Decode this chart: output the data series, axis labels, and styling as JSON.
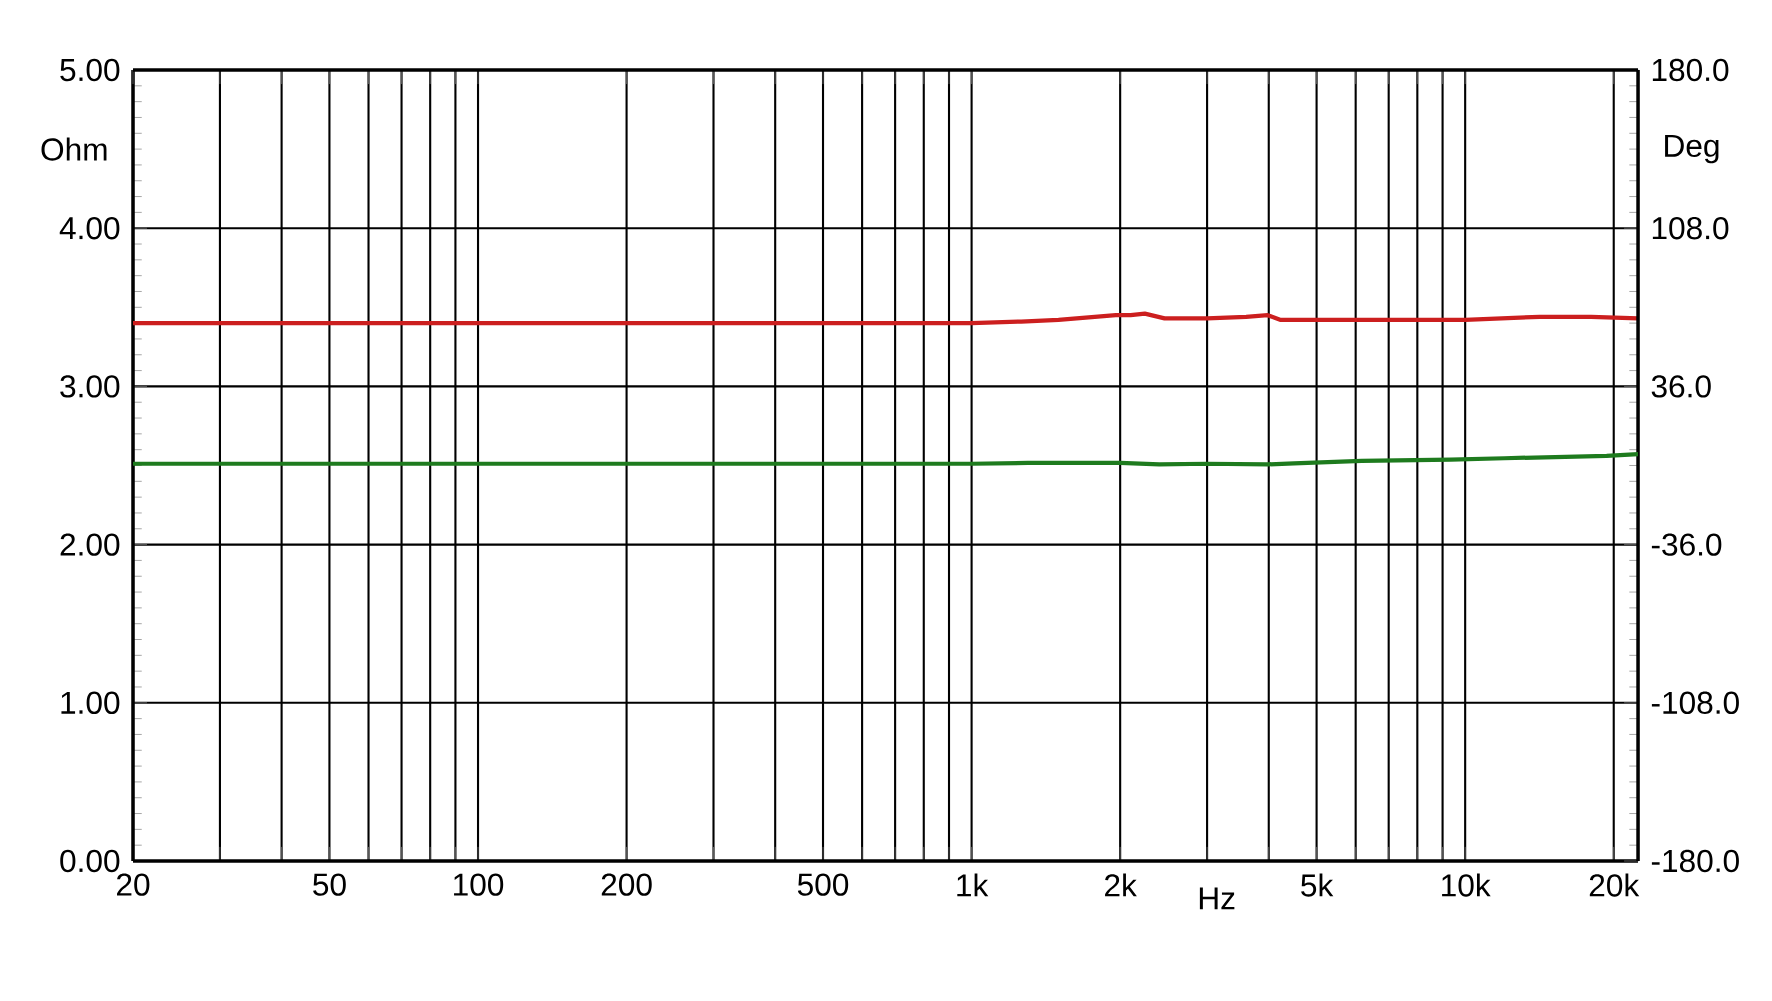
{
  "chart_data": {
    "type": "line",
    "xlabel": "Hz",
    "ylabel": "Ohm",
    "y2label": "Deg",
    "log": "x",
    "grid": true,
    "xlim": [
      20,
      22400
    ],
    "xticks": [
      20,
      {
        "value": 30,
        "label": null
      },
      {
        "value": 40,
        "label": null
      },
      50,
      {
        "value": 60,
        "label": null
      },
      {
        "value": 70,
        "label": null
      },
      {
        "value": 80,
        "label": null
      },
      {
        "value": 90,
        "label": null
      },
      100,
      200,
      {
        "value": 300,
        "label": null
      },
      {
        "value": 400,
        "label": null
      },
      500,
      {
        "value": 600,
        "label": null
      },
      {
        "value": 700,
        "label": null
      },
      {
        "value": 800,
        "label": null
      },
      {
        "value": 900,
        "label": null
      },
      {
        "value": 1000,
        "label": "1k"
      },
      {
        "value": 2000,
        "label": "2k"
      },
      {
        "value": 3000,
        "label": null
      },
      {
        "value": 4000,
        "label": null
      },
      {
        "value": 5000,
        "label": "5k"
      },
      {
        "value": 6000,
        "label": null
      },
      {
        "value": 7000,
        "label": null
      },
      {
        "value": 8000,
        "label": null
      },
      {
        "value": 9000,
        "label": null
      },
      {
        "value": 10000,
        "label": "10k"
      },
      {
        "value": 20000,
        "label": "20k"
      }
    ],
    "ylim": [
      0,
      5
    ],
    "yticks": [
      {
        "value": 0,
        "label": "0.00"
      },
      {
        "value": 1,
        "label": "1.00"
      },
      {
        "value": 2,
        "label": "2.00"
      },
      {
        "value": 3,
        "label": "3.00"
      },
      {
        "value": 4,
        "label": "4.00"
      },
      {
        "value": 5,
        "label": "5.00"
      }
    ],
    "y2lim": [
      -180,
      180
    ],
    "y2ticks": [
      {
        "value": -180,
        "label": "-180.0"
      },
      {
        "value": -108,
        "label": "-108.0"
      },
      {
        "value": -36,
        "label": "-36.0"
      },
      {
        "value": 36,
        "label": "36.0"
      },
      {
        "value": 108,
        "label": "108.0"
      },
      {
        "value": 180,
        "label": "180.0"
      }
    ],
    "series": [
      {
        "color": "#cc1f1f",
        "x": [
          20,
          1000,
          1260,
          1500,
          1960,
          2100,
          2244,
          2460,
          3000,
          3600,
          3980,
          4230,
          6000,
          8000,
          9000,
          10000,
          14150,
          18000,
          22400
        ],
        "values": [
          3.4,
          3.4,
          3.41,
          3.42,
          3.45,
          3.45,
          3.46,
          3.43,
          3.43,
          3.44,
          3.45,
          3.42,
          3.42,
          3.42,
          3.42,
          3.42,
          3.44,
          3.44,
          3.43
        ]
      },
      {
        "color": "#1e7b1e",
        "axis": "y2",
        "x": [
          20,
          1000,
          1300,
          2000,
          2400,
          3000,
          3980,
          4500,
          6170,
          9350,
          12000,
          19350,
          22400
        ],
        "values": [
          0.8,
          0.8,
          1.2,
          1.2,
          0.5,
          0.8,
          0.5,
          1.0,
          2.1,
          2.7,
          3.3,
          4.4,
          5.2
        ]
      }
    ]
  }
}
